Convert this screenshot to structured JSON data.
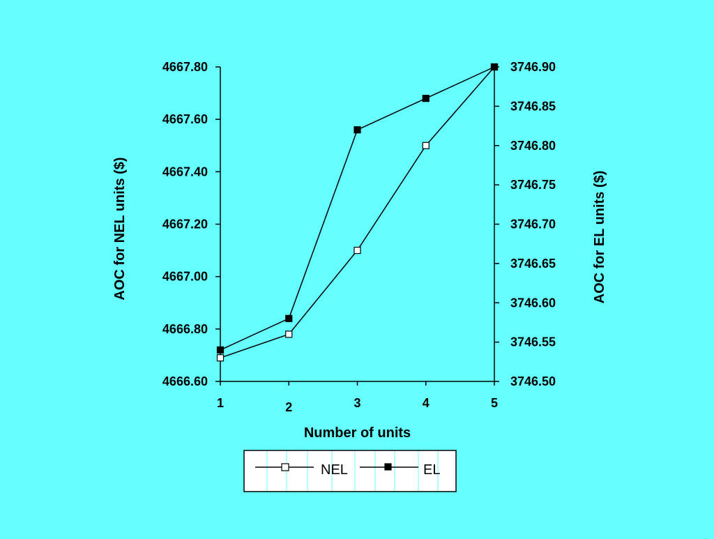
{
  "chart_data": {
    "type": "line",
    "x": [
      1,
      2,
      3,
      4,
      5
    ],
    "x_tick_labels": [
      "1",
      "2",
      "3",
      "4",
      "5"
    ],
    "xlabel": "Number of units",
    "ylabel_left": "AOC for NEL units ($)",
    "ylabel_right": "AOC for EL units ($)",
    "ylim_left": [
      4666.6,
      4667.8
    ],
    "ylim_right": [
      3746.5,
      3746.9
    ],
    "y_ticks_left": [
      "4666.60",
      "4666.80",
      "4667.00",
      "4667.20",
      "4667.40",
      "4667.60",
      "4667.80"
    ],
    "y_ticks_right": [
      "3746.50",
      "3746.55",
      "3746.60",
      "3746.65",
      "3746.70",
      "3746.75",
      "3746.80",
      "3746.85",
      "3746.90"
    ],
    "series": [
      {
        "name": "NEL",
        "axis": "left",
        "marker": "hollow-square",
        "values": [
          4666.69,
          4666.78,
          4667.1,
          4667.5,
          4667.8
        ]
      },
      {
        "name": "EL",
        "axis": "right",
        "marker": "filled-square",
        "values": [
          3746.54,
          3746.58,
          3746.82,
          3746.86,
          3746.9
        ]
      }
    ],
    "grid": false,
    "legend_position": "bottom-center",
    "colors": {
      "background": "#66FFFF",
      "line": "#000000",
      "legend_background": "#FFFFFF"
    }
  }
}
